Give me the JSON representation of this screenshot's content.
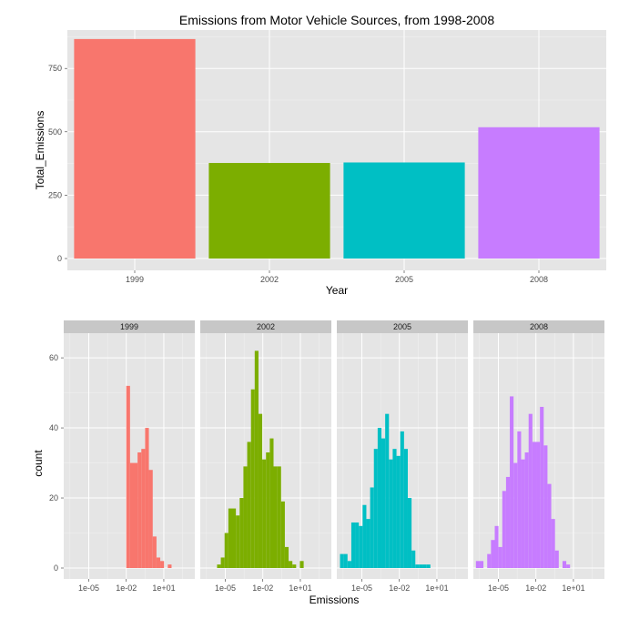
{
  "colors": {
    "panel_bg": "#e5e5e5",
    "grid_major": "#ffffff",
    "grid_minor": "#f2f2f2",
    "strip_bg": "#c7c7c7",
    "tick_text": "#4d4d4d",
    "series": [
      "#f8766d",
      "#7cae00",
      "#00bfc4",
      "#c77cff"
    ]
  },
  "chart_data": [
    {
      "type": "bar",
      "title": "Emissions from Motor Vehicle Sources, from 1998-2008",
      "xlabel": "Year",
      "ylabel": "Total_Emissions",
      "categories": [
        "1999",
        "2002",
        "2005",
        "2008"
      ],
      "values": [
        866,
        377,
        379,
        518
      ],
      "ylim": [
        0,
        880
      ],
      "yticks": [
        0,
        250,
        500,
        750
      ],
      "grid": true
    },
    {
      "type": "bar",
      "subtype": "faceted histogram",
      "xlabel": "Emissions",
      "ylabel": "count",
      "x_scale": "log10",
      "xlim": [
        1e-07,
        3000.0
      ],
      "xticks": [
        1e-05,
        0.01,
        10.0
      ],
      "xtick_labels": [
        "1e-05",
        "1e-02",
        "1e+01"
      ],
      "ylim": [
        0,
        66
      ],
      "yticks": [
        0,
        20,
        40,
        60
      ],
      "grid": true,
      "facets": [
        {
          "label": "1999",
          "bins": [
            {
              "x": [
                0.01,
                0.02
              ],
              "count": 52
            },
            {
              "x": [
                0.02,
                0.04
              ],
              "count": 30
            },
            {
              "x": [
                0.04,
                0.08
              ],
              "count": 30
            },
            {
              "x": [
                0.08,
                0.16
              ],
              "count": 33
            },
            {
              "x": [
                0.16,
                0.32
              ],
              "count": 34
            },
            {
              "x": [
                0.32,
                0.64
              ],
              "count": 40
            },
            {
              "x": [
                0.64,
                1.3
              ],
              "count": 28
            },
            {
              "x": [
                1.3,
                2.6
              ],
              "count": 9
            },
            {
              "x": [
                2.6,
                5.2
              ],
              "count": 3
            },
            {
              "x": [
                5.2,
                10.4
              ],
              "count": 2
            },
            {
              "x": [
                10.4,
                20.8
              ],
              "count": 0
            },
            {
              "x": [
                20.8,
                41.6
              ],
              "count": 1
            }
          ]
        },
        {
          "label": "2002",
          "bins": [
            {
              "x": [
                2.2e-06,
                4.4e-06
              ],
              "count": 1
            },
            {
              "x": [
                4.4e-06,
                8.8e-06
              ],
              "count": 3
            },
            {
              "x": [
                8.8e-06,
                1.76e-05
              ],
              "count": 10
            },
            {
              "x": [
                1.76e-05,
                3.52e-05
              ],
              "count": 17
            },
            {
              "x": [
                3.52e-05,
                7.04e-05
              ],
              "count": 17
            },
            {
              "x": [
                7.04e-05,
                0.000141
              ],
              "count": 15
            },
            {
              "x": [
                0.000141,
                0.000282
              ],
              "count": 20
            },
            {
              "x": [
                0.000282,
                0.000563
              ],
              "count": 29
            },
            {
              "x": [
                0.000563,
                0.00113
              ],
              "count": 36
            },
            {
              "x": [
                0.00113,
                0.00225
              ],
              "count": 51
            },
            {
              "x": [
                0.00225,
                0.0045
              ],
              "count": 62
            },
            {
              "x": [
                0.0045,
                0.009
              ],
              "count": 44
            },
            {
              "x": [
                0.009,
                0.018
              ],
              "count": 31
            },
            {
              "x": [
                0.018,
                0.036
              ],
              "count": 33
            },
            {
              "x": [
                0.036,
                0.072
              ],
              "count": 37
            },
            {
              "x": [
                0.072,
                0.144
              ],
              "count": 29
            },
            {
              "x": [
                0.144,
                0.288
              ],
              "count": 29
            },
            {
              "x": [
                0.288,
                0.576
              ],
              "count": 19
            },
            {
              "x": [
                0.576,
                1.15
              ],
              "count": 6
            },
            {
              "x": [
                1.15,
                2.3
              ],
              "count": 2
            },
            {
              "x": [
                2.3,
                4.6
              ],
              "count": 1
            },
            {
              "x": [
                4.6,
                9.2
              ],
              "count": 0
            },
            {
              "x": [
                9.2,
                18.4
              ],
              "count": 2
            }
          ]
        },
        {
          "label": "2005",
          "bins": [
            {
              "x": [
                1.8e-07,
                3.6e-07
              ],
              "count": 4
            },
            {
              "x": [
                3.6e-07,
                7.2e-07
              ],
              "count": 4
            },
            {
              "x": [
                7.2e-07,
                1.44e-06
              ],
              "count": 2
            },
            {
              "x": [
                1.44e-06,
                2.88e-06
              ],
              "count": 13
            },
            {
              "x": [
                2.88e-06,
                5.76e-06
              ],
              "count": 13
            },
            {
              "x": [
                5.76e-06,
                1.15e-05
              ],
              "count": 12
            },
            {
              "x": [
                1.15e-05,
                2.3e-05
              ],
              "count": 18
            },
            {
              "x": [
                2.3e-05,
                4.6e-05
              ],
              "count": 14
            },
            {
              "x": [
                4.6e-05,
                9.2e-05
              ],
              "count": 23
            },
            {
              "x": [
                9.2e-05,
                0.000184
              ],
              "count": 34
            },
            {
              "x": [
                0.000184,
                0.000368
              ],
              "count": 40
            },
            {
              "x": [
                0.000368,
                0.000736
              ],
              "count": 37
            },
            {
              "x": [
                0.000736,
                0.00147
              ],
              "count": 44
            },
            {
              "x": [
                0.00147,
                0.00294
              ],
              "count": 31
            },
            {
              "x": [
                0.00294,
                0.00589
              ],
              "count": 34
            },
            {
              "x": [
                0.00589,
                0.0118
              ],
              "count": 32
            },
            {
              "x": [
                0.0118,
                0.0236
              ],
              "count": 39
            },
            {
              "x": [
                0.0236,
                0.0472
              ],
              "count": 34
            },
            {
              "x": [
                0.0472,
                0.0944
              ],
              "count": 20
            },
            {
              "x": [
                0.0944,
                0.189
              ],
              "count": 5
            },
            {
              "x": [
                0.189,
                0.378
              ],
              "count": 1
            },
            {
              "x": [
                0.378,
                0.756
              ],
              "count": 1
            },
            {
              "x": [
                0.756,
                1.51
              ],
              "count": 1
            },
            {
              "x": [
                1.51,
                3.02
              ],
              "count": 1
            }
          ]
        },
        {
          "label": "2008",
          "bins": [
            {
              "x": [
                1.6e-07,
                3.2e-07
              ],
              "count": 2
            },
            {
              "x": [
                3.2e-07,
                6.4e-07
              ],
              "count": 2
            },
            {
              "x": [
                6.4e-07,
                1.28e-06
              ],
              "count": 0
            },
            {
              "x": [
                1.28e-06,
                2.56e-06
              ],
              "count": 4
            },
            {
              "x": [
                2.56e-06,
                5.12e-06
              ],
              "count": 8
            },
            {
              "x": [
                5.12e-06,
                1.02e-05
              ],
              "count": 12
            },
            {
              "x": [
                1.02e-05,
                2.05e-05
              ],
              "count": 6
            },
            {
              "x": [
                2.05e-05,
                4.1e-05
              ],
              "count": 22
            },
            {
              "x": [
                4.1e-05,
                8.2e-05
              ],
              "count": 26
            },
            {
              "x": [
                8.2e-05,
                0.000164
              ],
              "count": 49
            },
            {
              "x": [
                0.000164,
                0.000328
              ],
              "count": 30
            },
            {
              "x": [
                0.000328,
                0.000655
              ],
              "count": 39
            },
            {
              "x": [
                0.000655,
                0.00131
              ],
              "count": 31
            },
            {
              "x": [
                0.00131,
                0.00262
              ],
              "count": 33
            },
            {
              "x": [
                0.00262,
                0.00524
              ],
              "count": 44
            },
            {
              "x": [
                0.00524,
                0.0105
              ],
              "count": 36
            },
            {
              "x": [
                0.0105,
                0.021
              ],
              "count": 36
            },
            {
              "x": [
                0.021,
                0.0419
              ],
              "count": 46
            },
            {
              "x": [
                0.0419,
                0.0839
              ],
              "count": 35
            },
            {
              "x": [
                0.0839,
                0.168
              ],
              "count": 24
            },
            {
              "x": [
                0.168,
                0.336
              ],
              "count": 14
            },
            {
              "x": [
                0.336,
                0.671
              ],
              "count": 5
            },
            {
              "x": [
                0.671,
                1.34
              ],
              "count": 0
            },
            {
              "x": [
                1.34,
                2.68
              ],
              "count": 2
            },
            {
              "x": [
                2.68,
                5.37
              ],
              "count": 1
            }
          ]
        }
      ]
    }
  ]
}
